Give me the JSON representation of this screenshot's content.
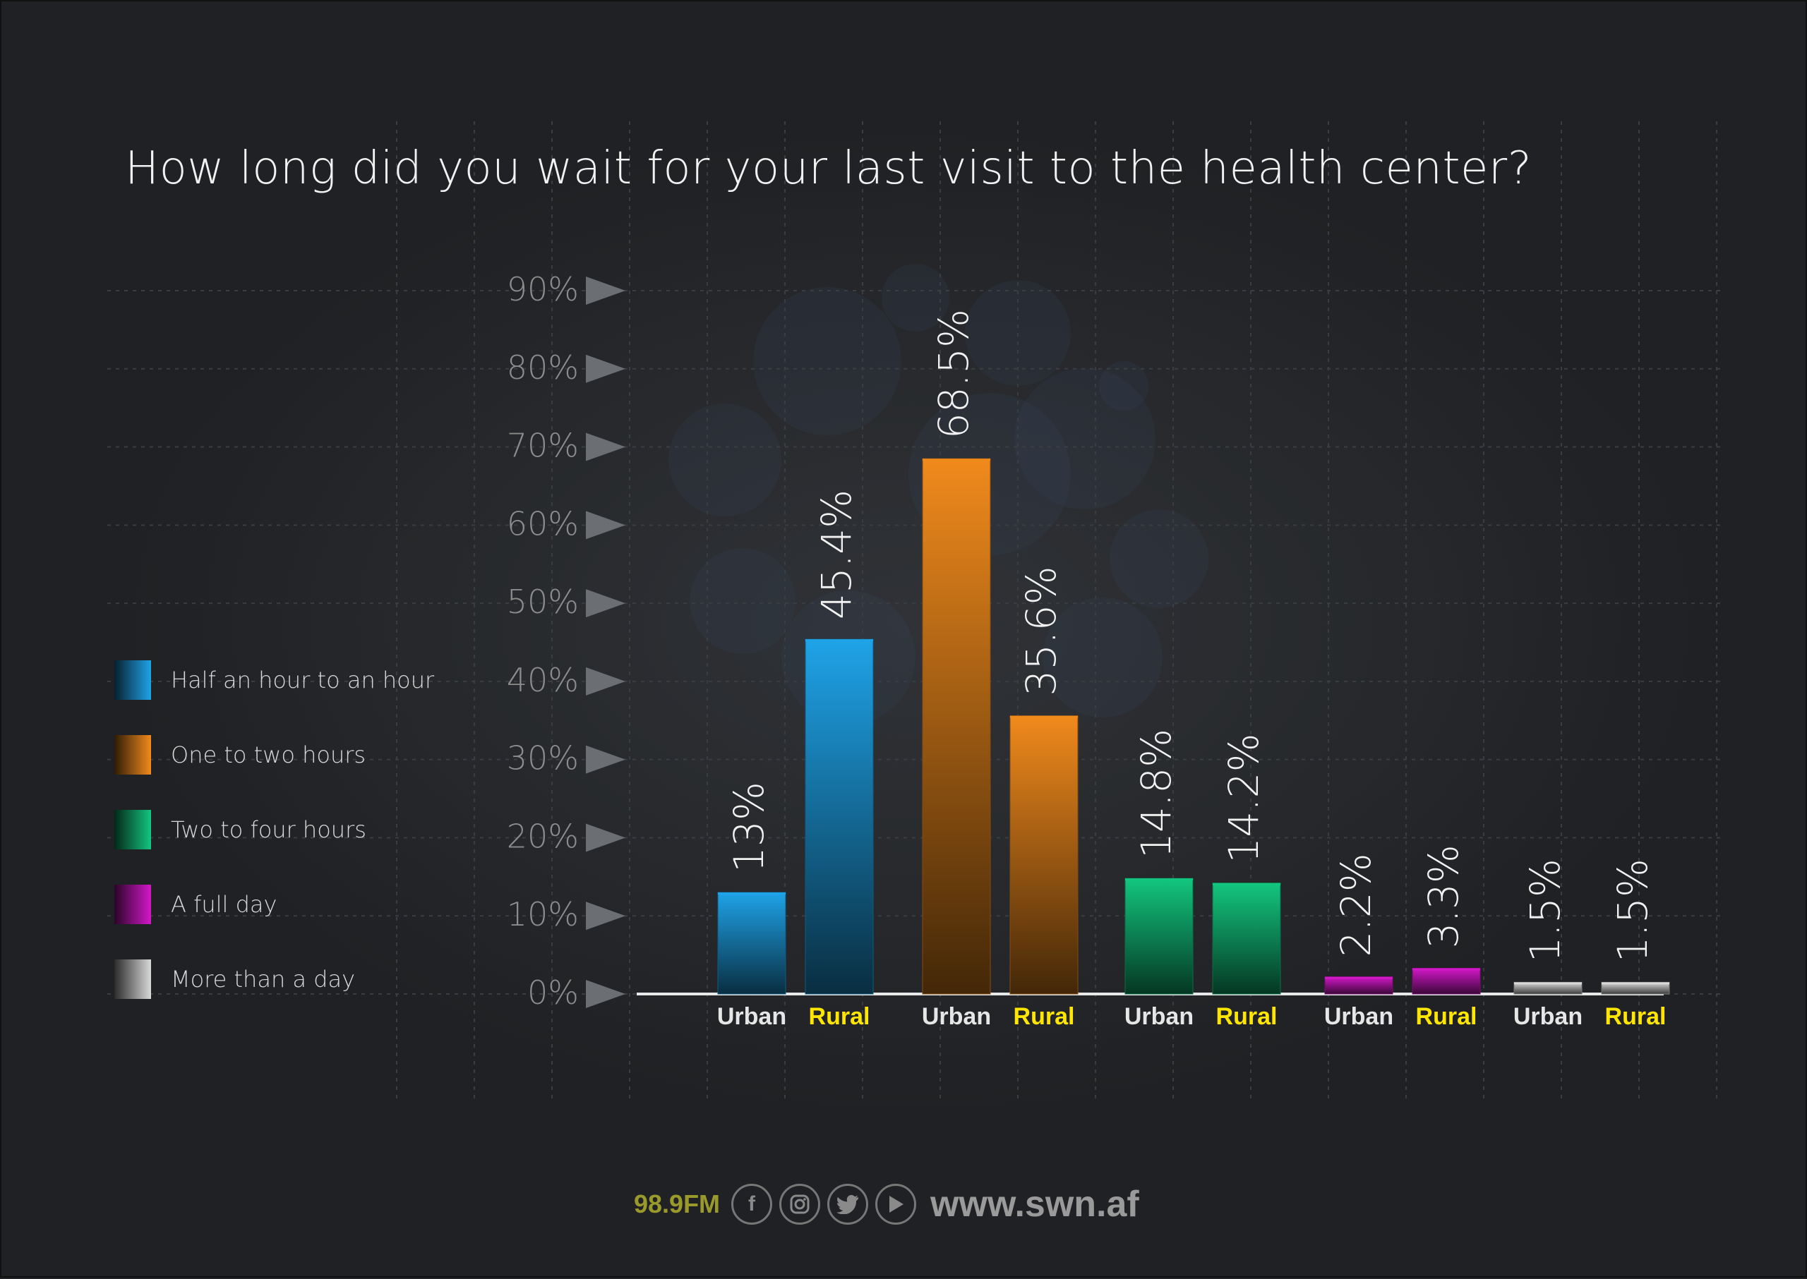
{
  "chart_data": {
    "type": "bar",
    "title": "How long did you wait for your last visit to the health center?",
    "ylim": [
      0,
      90
    ],
    "yticks": [
      "0%",
      "10%",
      "20%",
      "30%",
      "40%",
      "50%",
      "60%",
      "70%",
      "80%",
      "90%"
    ],
    "tick_values": [
      0,
      10,
      20,
      30,
      40,
      50,
      60,
      70,
      80,
      90
    ],
    "grid": true,
    "legend_position": "left",
    "series": [
      {
        "name": "Half an hour to an hour",
        "color": "#1fa3e8",
        "values": [
          13,
          45.4
        ],
        "labels": [
          "13%",
          "45.4%"
        ]
      },
      {
        "name": "One to two hours",
        "color": "#f08a1c",
        "values": [
          68.5,
          35.6
        ],
        "labels": [
          "68.5%",
          "35.6%"
        ]
      },
      {
        "name": "Two to four hours",
        "color": "#13c67e",
        "values": [
          14.8,
          14.2
        ],
        "labels": [
          "14.8%",
          "14.2%"
        ]
      },
      {
        "name": "A full day",
        "color": "#d318c8",
        "values": [
          2.2,
          3.3
        ],
        "labels": [
          "2.2%",
          "3.3%"
        ]
      },
      {
        "name": "More than a day",
        "color": "#d9d9d9",
        "values": [
          1.5,
          1.5
        ],
        "labels": [
          "1.5%",
          "1.5%"
        ]
      }
    ],
    "categories": [
      "Urban",
      "Rural"
    ],
    "category_colors": {
      "Urban": "#e6e6e6",
      "Rural": "#ffe600"
    }
  },
  "footer": {
    "frequency": "98.9FM",
    "icons": [
      "facebook-icon",
      "instagram-icon",
      "twitter-icon",
      "youtube-icon"
    ],
    "website": "www.swn.af"
  }
}
